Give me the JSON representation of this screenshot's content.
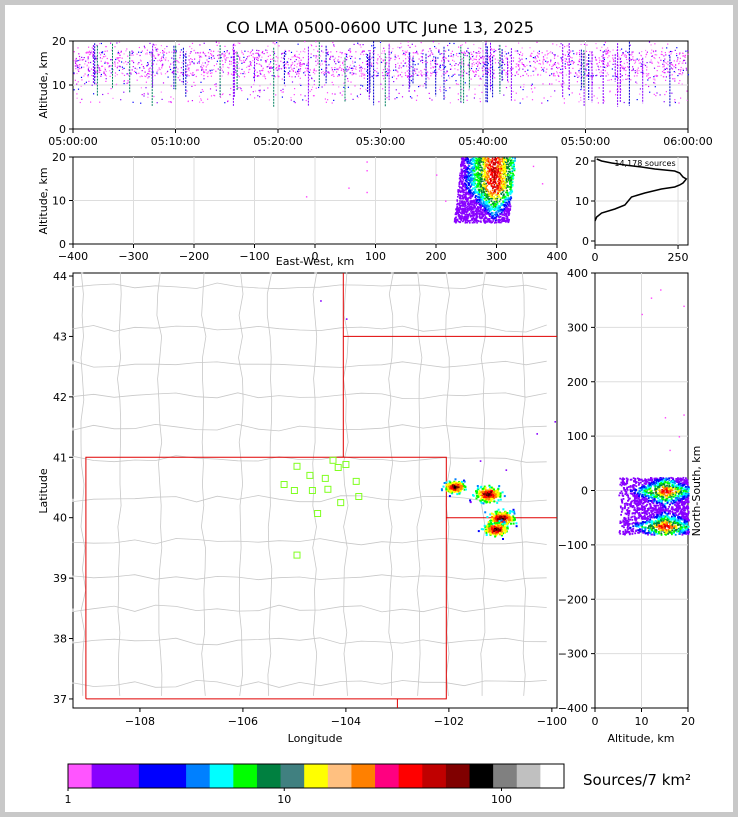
{
  "title": "CO LMA 0500-0600 UTC June 13, 2025",
  "chart_data": [
    {
      "id": "altitude-time",
      "type": "scatter",
      "ylabel": "Altitude, km",
      "xlabel": "",
      "ylim": [
        0,
        20
      ],
      "yticks": [
        "0",
        "10",
        "20"
      ],
      "xticks": [
        "05:00:00",
        "05:10:00",
        "05:20:00",
        "05:30:00",
        "05:40:00",
        "05:50:00",
        "06:00:00"
      ],
      "altitude_band_km": [
        6,
        20
      ],
      "dense_band_km": [
        12,
        18
      ],
      "grid": true
    },
    {
      "id": "altitude-eastwest",
      "type": "scatter",
      "ylabel": "Altitude, km",
      "xlabel": "East-West, km",
      "xlim": [
        -400,
        400
      ],
      "ylim": [
        0,
        20
      ],
      "xticks": [
        "−400",
        "−300",
        "−200",
        "−100",
        "0",
        "100",
        "200",
        "300",
        "400"
      ],
      "yticks": [
        "0",
        "10",
        "20"
      ],
      "cluster": {
        "x_range_km": [
          225,
          335
        ],
        "alt_range_km": [
          5,
          20
        ],
        "core_x_km": 295,
        "core_alt_km": [
          13,
          19
        ]
      },
      "grid": true
    },
    {
      "id": "altitude-histogram",
      "type": "line",
      "annotation": "14,178 sources",
      "xticks": [
        "0",
        "250"
      ],
      "yticks": [
        "0",
        "10",
        "20"
      ],
      "xlim": [
        0,
        280
      ],
      "ylim": [
        -1,
        21
      ],
      "x": [
        0,
        5,
        20,
        60,
        90,
        100,
        110,
        150,
        200,
        240,
        255,
        265,
        270,
        275,
        265,
        255,
        240,
        180,
        140,
        90,
        50,
        20,
        5
      ],
      "y": [
        5,
        6,
        7,
        8,
        9,
        10,
        11,
        12,
        13,
        13.5,
        14,
        14.5,
        15,
        15.5,
        16,
        17,
        17.5,
        18,
        18.5,
        19,
        19.5,
        20,
        20.5
      ],
      "grid": true
    },
    {
      "id": "plan-view-map",
      "type": "scatter",
      "xlabel": "Longitude",
      "ylabel": "Latitude",
      "xlim": [
        -109.3,
        -99.9
      ],
      "ylim": [
        36.85,
        44.05
      ],
      "xticks": [
        "−108",
        "−106",
        "−104",
        "−102",
        "−100"
      ],
      "yticks": [
        "37",
        "38",
        "39",
        "40",
        "41",
        "42",
        "43",
        "44"
      ],
      "station_color": "#80ff20",
      "stations": [
        {
          "lon": -105.2,
          "lat": 40.55
        },
        {
          "lon": -104.95,
          "lat": 40.85
        },
        {
          "lon": -104.7,
          "lat": 40.7
        },
        {
          "lon": -104.4,
          "lat": 40.65
        },
        {
          "lon": -104.25,
          "lat": 40.95
        },
        {
          "lon": -104.15,
          "lat": 40.83
        },
        {
          "lon": -104.0,
          "lat": 40.88
        },
        {
          "lon": -103.8,
          "lat": 40.6
        },
        {
          "lon": -103.75,
          "lat": 40.35
        },
        {
          "lon": -104.35,
          "lat": 40.47
        },
        {
          "lon": -104.65,
          "lat": 40.45
        },
        {
          "lon": -105.0,
          "lat": 40.45
        },
        {
          "lon": -104.1,
          "lat": 40.25
        },
        {
          "lon": -104.55,
          "lat": 40.07
        },
        {
          "lon": -104.95,
          "lat": 39.38
        }
      ],
      "storm_cells": [
        {
          "lon": -101.9,
          "lat": 40.52,
          "size": 0.35
        },
        {
          "lon": -101.25,
          "lat": 40.4,
          "size": 0.45
        },
        {
          "lon": -101.0,
          "lat": 40.0,
          "size": 0.45
        },
        {
          "lon": -101.1,
          "lat": 39.82,
          "size": 0.4
        }
      ]
    },
    {
      "id": "northsouth-altitude",
      "type": "scatter",
      "xlabel": "Altitude, km",
      "ylabel": "North-South, km",
      "xlim": [
        0,
        20
      ],
      "ylim": [
        -400,
        400
      ],
      "xticks": [
        "0",
        "10",
        "20"
      ],
      "yticks": [
        "−400",
        "−300",
        "−200",
        "−100",
        "0",
        "100",
        "200",
        "300",
        "400"
      ],
      "cluster": {
        "ns_range_km": [
          -80,
          25
        ],
        "alt_range_km": [
          5,
          20
        ]
      },
      "grid": true
    }
  ],
  "colorbar": {
    "label": "Sources/7 km²",
    "tick_labels": [
      "1",
      "10",
      "100"
    ],
    "colors": [
      "#ff55ff",
      "#8800ff",
      "#8800ff",
      "#0000ff",
      "#0000ff",
      "#0080ff",
      "#00ffff",
      "#00ff00",
      "#008040",
      "#408080",
      "#ffff00",
      "#ffc080",
      "#ff8000",
      "#ff0080",
      "#ff0000",
      "#c00000",
      "#800000",
      "#000000",
      "#808080",
      "#c0c0c0",
      "#ffffff"
    ]
  }
}
